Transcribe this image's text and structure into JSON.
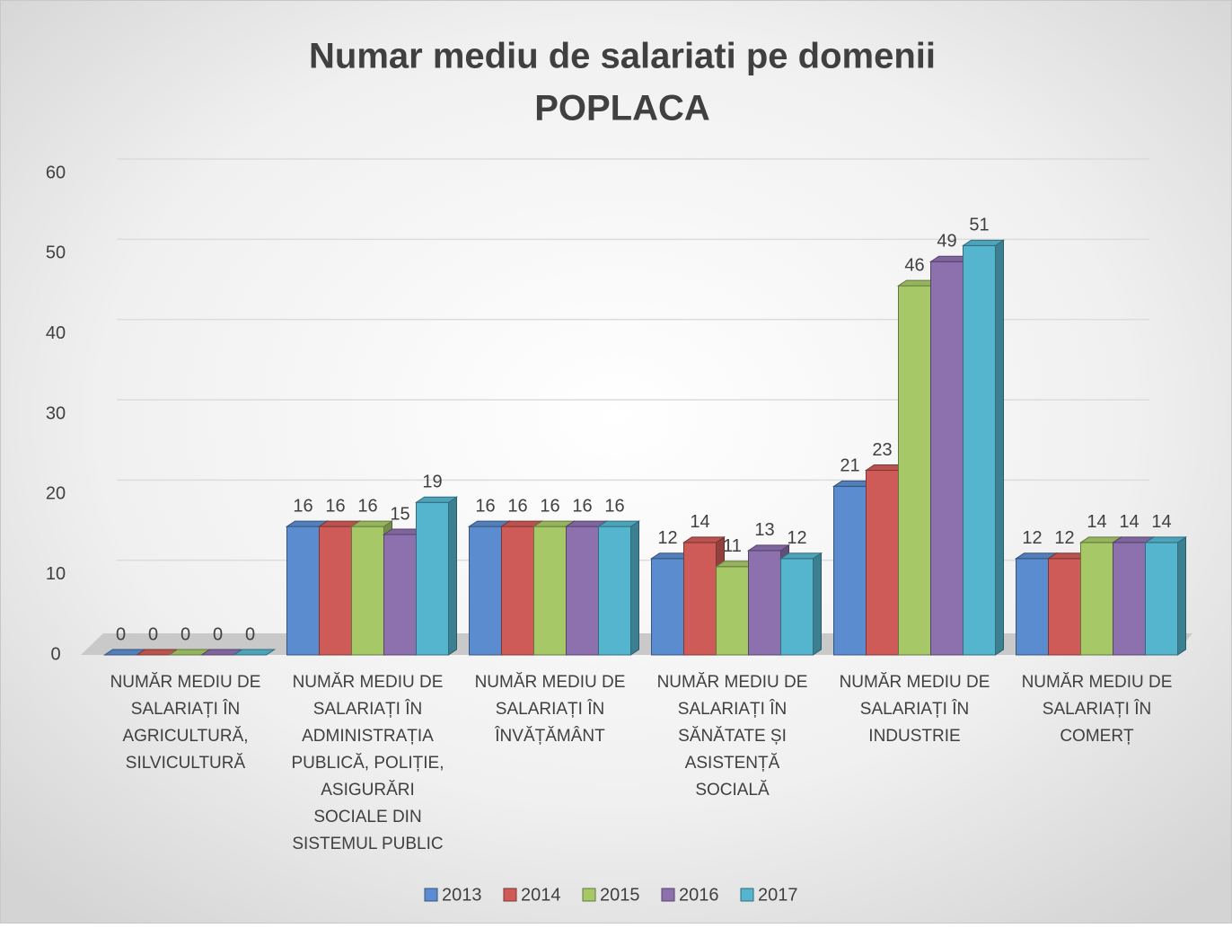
{
  "chart_data": {
    "type": "bar",
    "title": [
      "Numar mediu de salariati pe domenii",
      "POPLACA"
    ],
    "categories": [
      [
        "NUMĂR MEDIU DE",
        "SALARIAȚI ÎN",
        "AGRICULTURĂ,",
        "SILVICULTURĂ"
      ],
      [
        "NUMĂR MEDIU DE",
        "SALARIAȚI ÎN",
        "ADMINISTRAȚIA",
        "PUBLICĂ, POLIȚIE,",
        "ASIGURĂRI",
        "SOCIALE DIN",
        "SISTEMUL PUBLIC"
      ],
      [
        "NUMĂR MEDIU DE",
        "SALARIAȚI ÎN",
        "ÎNVĂȚĂMÂNT"
      ],
      [
        "NUMĂR MEDIU DE",
        "SALARIAȚI ÎN",
        "SĂNĂTATE ȘI",
        "ASISTENȚĂ",
        "SOCIALĂ"
      ],
      [
        "NUMĂR MEDIU DE",
        "SALARIAȚI ÎN",
        "INDUSTRIE"
      ],
      [
        "NUMĂR MEDIU DE",
        "SALARIAȚI ÎN",
        "COMERȚ"
      ]
    ],
    "series": [
      {
        "name": "2013",
        "color": "#5b8ccf",
        "values": [
          0,
          16,
          16,
          12,
          21,
          12
        ]
      },
      {
        "name": "2014",
        "color": "#cf5b58",
        "values": [
          0,
          16,
          16,
          14,
          23,
          12
        ]
      },
      {
        "name": "2015",
        "color": "#a6c867",
        "values": [
          0,
          16,
          16,
          11,
          46,
          14
        ]
      },
      {
        "name": "2016",
        "color": "#8d70ae",
        "values": [
          0,
          15,
          16,
          13,
          49,
          14
        ]
      },
      {
        "name": "2017",
        "color": "#55b5cf",
        "values": [
          0,
          19,
          16,
          12,
          51,
          14
        ]
      }
    ],
    "ylim": [
      0,
      60
    ],
    "yticks": [
      0,
      10,
      20,
      30,
      40,
      50,
      60
    ],
    "grid": true,
    "legend": "bottom"
  }
}
